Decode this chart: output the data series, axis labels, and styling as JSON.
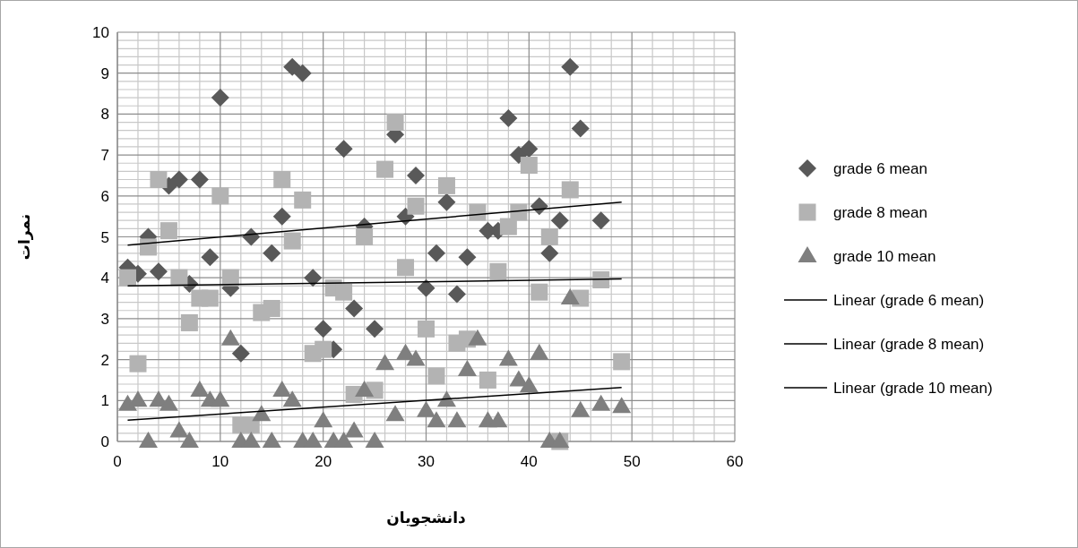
{
  "chart_data": {
    "type": "scatter",
    "xlabel": "دانشجویان",
    "ylabel": "نمرات",
    "xlim": [
      0,
      60
    ],
    "ylim": [
      0,
      10
    ],
    "xticks": [
      0,
      10,
      20,
      30,
      40,
      50,
      60
    ],
    "yticks": [
      0,
      1,
      2,
      3,
      4,
      5,
      6,
      7,
      8,
      9,
      10
    ],
    "grid": true,
    "legend": "right",
    "series": [
      {
        "name": "grade 6 mean",
        "type": "scatter",
        "marker": "diamond",
        "color": "#595959",
        "x": [
          1,
          2,
          3,
          4,
          5,
          6,
          7,
          8,
          9,
          10,
          11,
          12,
          13,
          15,
          16,
          17,
          18,
          19,
          20,
          21,
          22,
          23,
          24,
          25,
          27,
          28,
          29,
          30,
          31,
          32,
          33,
          34,
          36,
          37,
          38,
          39,
          40,
          41,
          42,
          43,
          44,
          45,
          47
        ],
        "values": [
          4.25,
          4.1,
          5.0,
          4.15,
          6.25,
          6.4,
          3.85,
          6.4,
          4.5,
          8.4,
          3.75,
          2.15,
          5.0,
          4.6,
          5.5,
          9.15,
          9.0,
          4.0,
          2.75,
          2.25,
          7.15,
          3.25,
          5.25,
          2.75,
          7.5,
          5.5,
          6.5,
          3.75,
          4.6,
          5.85,
          3.6,
          4.5,
          5.15,
          5.15,
          7.9,
          7.0,
          7.15,
          5.75,
          4.6,
          5.4,
          9.15,
          7.65,
          5.4
        ]
      },
      {
        "name": "grade 8 mean",
        "type": "scatter",
        "marker": "square",
        "color": "#b3b3b3",
        "x": [
          1,
          2,
          3,
          4,
          5,
          6,
          7,
          8,
          9,
          10,
          11,
          12,
          13,
          14,
          15,
          16,
          17,
          18,
          19,
          20,
          21,
          22,
          23,
          24,
          25,
          26,
          27,
          28,
          29,
          30,
          31,
          32,
          33,
          34,
          35,
          36,
          37,
          38,
          39,
          40,
          41,
          42,
          43,
          44,
          45,
          47,
          49
        ],
        "values": [
          4.0,
          1.9,
          4.75,
          6.4,
          5.15,
          4.0,
          2.9,
          3.5,
          3.5,
          6.0,
          4.0,
          0.4,
          0.4,
          3.15,
          3.25,
          6.4,
          4.9,
          5.9,
          2.15,
          2.25,
          3.75,
          3.65,
          1.15,
          5.0,
          1.25,
          6.65,
          7.8,
          4.25,
          5.75,
          2.75,
          1.6,
          6.25,
          2.4,
          2.5,
          5.6,
          1.5,
          4.15,
          5.25,
          5.6,
          6.75,
          3.65,
          5.0,
          0.0,
          6.15,
          3.5,
          3.95,
          1.95
        ]
      },
      {
        "name": "grade 10 mean",
        "type": "scatter",
        "marker": "triangle",
        "color": "#7f7f7f",
        "x": [
          1,
          2,
          3,
          4,
          5,
          6,
          7,
          8,
          9,
          10,
          11,
          12,
          13,
          14,
          15,
          16,
          17,
          18,
          19,
          20,
          21,
          22,
          23,
          24,
          25,
          26,
          27,
          28,
          29,
          30,
          31,
          32,
          33,
          34,
          35,
          36,
          37,
          38,
          39,
          40,
          41,
          42,
          43,
          44,
          45,
          47,
          49
        ],
        "values": [
          0.9,
          1.0,
          0.0,
          1.0,
          0.9,
          0.25,
          0.0,
          1.25,
          1.0,
          1.0,
          2.5,
          0.0,
          0.0,
          0.65,
          0.0,
          1.25,
          1.0,
          0.0,
          0.0,
          0.5,
          0.0,
          0.0,
          0.25,
          1.25,
          0.0,
          1.9,
          0.65,
          2.15,
          2.0,
          0.75,
          0.5,
          1.0,
          0.5,
          1.75,
          2.5,
          0.5,
          0.5,
          2.0,
          1.5,
          1.35,
          2.15,
          0.0,
          0.0,
          3.5,
          0.75,
          0.9,
          0.85
        ]
      },
      {
        "name": "Linear (grade 6 mean)",
        "type": "line",
        "marker": "none",
        "color": "#000000",
        "x": [
          1,
          49
        ],
        "values": [
          4.8,
          5.85
        ]
      },
      {
        "name": "Linear (grade 8 mean)",
        "type": "line",
        "marker": "none",
        "color": "#000000",
        "x": [
          1,
          49
        ],
        "values": [
          3.8,
          3.97
        ]
      },
      {
        "name": "Linear (grade 10 mean)",
        "type": "line",
        "marker": "none",
        "color": "#000000",
        "x": [
          1,
          49
        ],
        "values": [
          0.52,
          1.32
        ]
      }
    ]
  }
}
